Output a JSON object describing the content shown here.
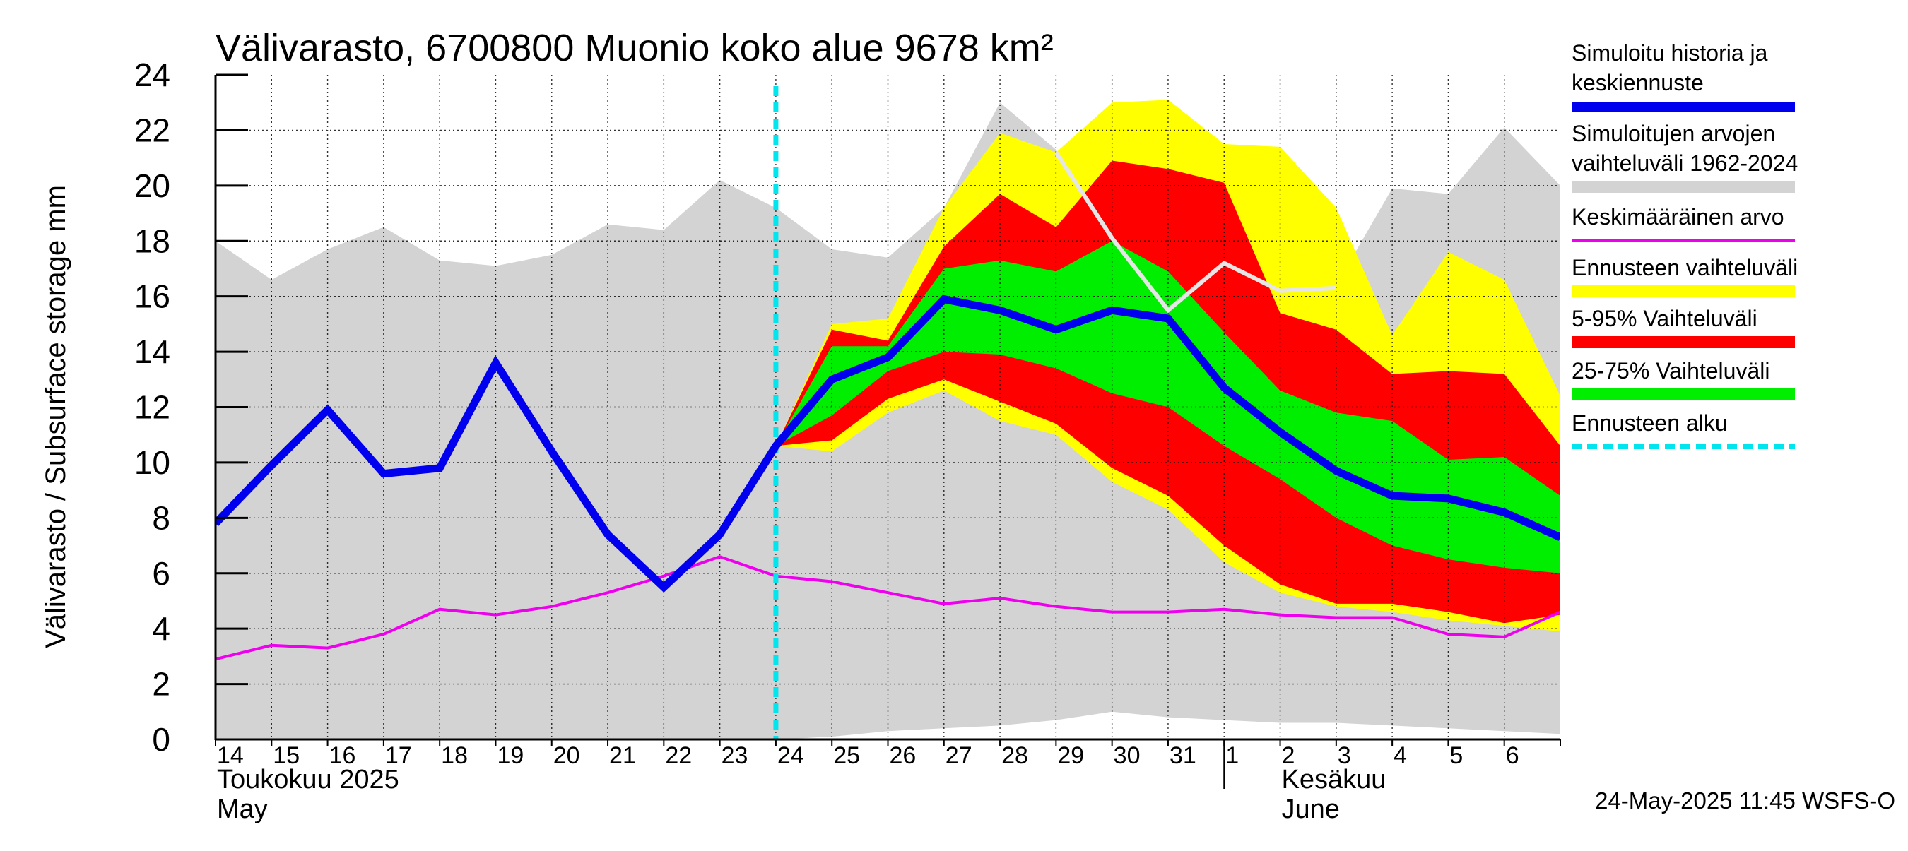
{
  "chart_data": {
    "type": "area",
    "title": "Välivarasto, 6700800 Muonio koko alue 9678 km²",
    "ylabel": "Välivarasto / Subsurface storage  mm",
    "ylim": [
      0,
      24
    ],
    "yticks": [
      "0",
      "2",
      "4",
      "6",
      "8",
      "10",
      "12",
      "14",
      "16",
      "18",
      "20",
      "22",
      "24"
    ],
    "xlim": [
      "2025-05-14",
      "2025-06-07"
    ],
    "x_tick_labels": [
      "14",
      "15",
      "16",
      "17",
      "18",
      "19",
      "20",
      "21",
      "22",
      "23",
      "24",
      "25",
      "26",
      "27",
      "28",
      "29",
      "30",
      "31",
      "1",
      "2",
      "3",
      "4",
      "5",
      "6"
    ],
    "month_labels": [
      {
        "fi": "Toukokuu  2025",
        "en": "May",
        "date": "2025-05-14"
      },
      {
        "fi": "Kesäkuu",
        "en": "June",
        "date": "2025-06-02"
      }
    ],
    "grid": true,
    "legend_position": "right",
    "forecast_start": "2025-05-24",
    "timestamp": "24-May-2025 11:45 WSFS-O",
    "legend": [
      {
        "label": "Simuloitu historia ja keskiennuste",
        "color": "#0000ee",
        "style": "thick-line"
      },
      {
        "label": "Simuloitujen arvojen vaihteluväli 1962-2024",
        "color": "#d3d3d3",
        "style": "band"
      },
      {
        "label": "Keskimääräinen arvo",
        "color": "#ee00ee",
        "style": "line"
      },
      {
        "label": "Ennusteen vaihteluväli",
        "color": "#ffff00",
        "style": "band"
      },
      {
        "label": "5-95% Vaihteluväli",
        "color": "#ff0000",
        "style": "band"
      },
      {
        "label": "25-75% Vaihteluväli",
        "color": "#00ee00",
        "style": "band"
      },
      {
        "label": "Ennusteen alku",
        "color": "#00e5ee",
        "style": "dashed"
      }
    ],
    "series": [
      {
        "name": "Simuloitujen arvojen vaihteluväli 1962-2024",
        "kind": "band",
        "color": "#d3d3d3",
        "x": [
          "2025-05-14",
          "2025-05-15",
          "2025-05-16",
          "2025-05-17",
          "2025-05-18",
          "2025-05-19",
          "2025-05-20",
          "2025-05-21",
          "2025-05-22",
          "2025-05-23",
          "2025-05-24",
          "2025-05-25",
          "2025-05-26",
          "2025-05-27",
          "2025-05-28",
          "2025-05-29",
          "2025-05-30",
          "2025-05-31",
          "2025-06-01",
          "2025-06-02",
          "2025-06-03",
          "2025-06-04",
          "2025-06-05",
          "2025-06-06",
          "2025-06-07"
        ],
        "low": [
          0,
          0,
          0,
          0,
          0,
          0,
          0,
          0,
          0,
          0,
          0,
          0.1,
          0.3,
          0.4,
          0.5,
          0.7,
          1.0,
          0.8,
          0.7,
          0.6,
          0.6,
          0.5,
          0.4,
          0.3,
          0.2
        ],
        "high": [
          18.0,
          16.6,
          17.7,
          18.5,
          17.3,
          17.1,
          17.5,
          18.6,
          18.4,
          20.2,
          19.2,
          17.7,
          17.4,
          19.2,
          23.0,
          21.3,
          18.1,
          15.5,
          17.2,
          16.2,
          16.4,
          19.9,
          19.7,
          22.1,
          20.0
        ]
      },
      {
        "name": "Ennusteen vaihteluväli",
        "kind": "band",
        "color": "#ffff00",
        "x": [
          "2025-05-24",
          "2025-05-25",
          "2025-05-26",
          "2025-05-27",
          "2025-05-28",
          "2025-05-29",
          "2025-05-30",
          "2025-05-31",
          "2025-06-01",
          "2025-06-02",
          "2025-06-03",
          "2025-06-04",
          "2025-06-05",
          "2025-06-06",
          "2025-06-07"
        ],
        "low": [
          10.6,
          10.4,
          11.8,
          12.6,
          11.5,
          11.0,
          9.3,
          8.3,
          6.4,
          5.3,
          4.8,
          4.6,
          4.3,
          4.1,
          3.9
        ],
        "high": [
          10.6,
          15.0,
          15.2,
          19.2,
          21.9,
          21.2,
          23.0,
          23.1,
          21.5,
          21.4,
          19.2,
          14.6,
          17.6,
          16.6,
          12.4
        ]
      },
      {
        "name": "5-95% Vaihteluväli",
        "kind": "band",
        "color": "#ff0000",
        "x": [
          "2025-05-24",
          "2025-05-25",
          "2025-05-26",
          "2025-05-27",
          "2025-05-28",
          "2025-05-29",
          "2025-05-30",
          "2025-05-31",
          "2025-06-01",
          "2025-06-02",
          "2025-06-03",
          "2025-06-04",
          "2025-06-05",
          "2025-06-06",
          "2025-06-07"
        ],
        "low": [
          10.6,
          10.8,
          12.3,
          13.0,
          12.2,
          11.4,
          9.8,
          8.8,
          7.0,
          5.6,
          4.9,
          4.9,
          4.6,
          4.2,
          4.5
        ],
        "high": [
          10.6,
          14.8,
          14.4,
          17.8,
          19.7,
          18.5,
          20.9,
          20.6,
          20.1,
          15.4,
          14.8,
          13.2,
          13.3,
          13.2,
          10.6
        ]
      },
      {
        "name": "25-75% Vaihteluväli",
        "kind": "band",
        "color": "#00ee00",
        "x": [
          "2025-05-24",
          "2025-05-25",
          "2025-05-26",
          "2025-05-27",
          "2025-05-28",
          "2025-05-29",
          "2025-05-30",
          "2025-05-31",
          "2025-06-01",
          "2025-06-02",
          "2025-06-03",
          "2025-06-04",
          "2025-06-05",
          "2025-06-06",
          "2025-06-07"
        ],
        "low": [
          10.6,
          11.7,
          13.3,
          14.0,
          13.9,
          13.4,
          12.5,
          12.0,
          10.6,
          9.4,
          8.0,
          7.0,
          6.5,
          6.2,
          6.0
        ],
        "high": [
          10.6,
          14.2,
          14.2,
          17.0,
          17.3,
          16.9,
          18.0,
          16.9,
          14.7,
          12.6,
          11.8,
          11.5,
          10.1,
          10.2,
          8.8
        ]
      },
      {
        "name": "Simuloitu historia ja keskiennuste",
        "kind": "line",
        "color": "#0000ee",
        "x": [
          "2025-05-14",
          "2025-05-15",
          "2025-05-16",
          "2025-05-17",
          "2025-05-18",
          "2025-05-19",
          "2025-05-20",
          "2025-05-21",
          "2025-05-22",
          "2025-05-23",
          "2025-05-24",
          "2025-05-25",
          "2025-05-26",
          "2025-05-27",
          "2025-05-28",
          "2025-05-29",
          "2025-05-30",
          "2025-05-31",
          "2025-06-01",
          "2025-06-02",
          "2025-06-03",
          "2025-06-04",
          "2025-06-05",
          "2025-06-06",
          "2025-06-07"
        ],
        "values": [
          7.8,
          9.9,
          11.9,
          9.6,
          9.8,
          13.6,
          10.4,
          7.4,
          5.5,
          7.4,
          10.6,
          13.0,
          13.8,
          15.9,
          15.5,
          14.8,
          15.5,
          15.2,
          12.7,
          11.1,
          9.7,
          8.8,
          8.7,
          8.2,
          7.3
        ]
      },
      {
        "name": "Keskimääräinen arvo",
        "kind": "line",
        "color": "#ee00ee",
        "x": [
          "2025-05-14",
          "2025-05-15",
          "2025-05-16",
          "2025-05-17",
          "2025-05-18",
          "2025-05-19",
          "2025-05-20",
          "2025-05-21",
          "2025-05-22",
          "2025-05-23",
          "2025-05-24",
          "2025-05-25",
          "2025-05-26",
          "2025-05-27",
          "2025-05-28",
          "2025-05-29",
          "2025-05-30",
          "2025-05-31",
          "2025-06-01",
          "2025-06-02",
          "2025-06-03",
          "2025-06-04",
          "2025-06-05",
          "2025-06-06",
          "2025-06-07"
        ],
        "values": [
          2.9,
          3.4,
          3.3,
          3.8,
          4.7,
          4.5,
          4.8,
          5.3,
          5.9,
          6.6,
          5.9,
          5.7,
          5.3,
          4.9,
          5.1,
          4.8,
          4.6,
          4.6,
          4.7,
          4.5,
          4.4,
          4.4,
          3.8,
          3.7,
          4.6
        ]
      },
      {
        "name": "",
        "kind": "line",
        "color": "#e6e6e6",
        "x": [
          "2025-05-29",
          "2025-05-30",
          "2025-05-31",
          "2025-06-01",
          "2025-06-02",
          "2025-06-03"
        ],
        "values": [
          21.2,
          18.1,
          15.5,
          17.2,
          16.2,
          16.3
        ]
      }
    ]
  }
}
